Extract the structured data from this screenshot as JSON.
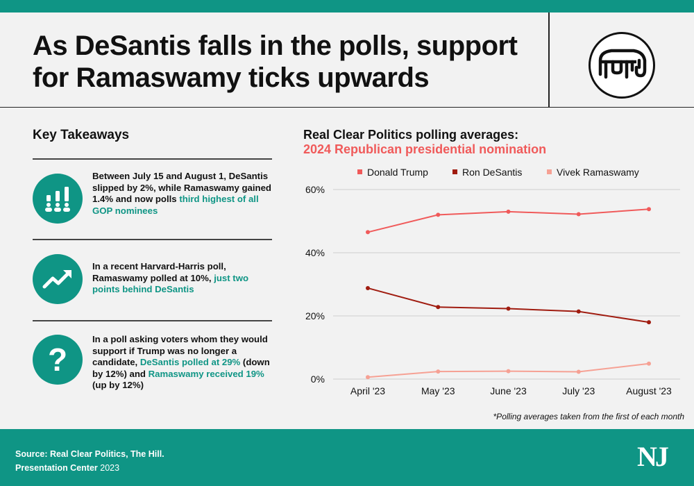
{
  "header": {
    "title": "As DeSantis falls in the polls, support for Ramaswamy ticks upwards",
    "logo_icon": "gop-elephant-icon"
  },
  "takeaways": {
    "title": "Key Takeaways",
    "items": [
      {
        "icon": "poll-people-icon",
        "text": "Between July 15 and August 1, DeSantis slipped by 2%, while Ramaswamy gained 1.4% and now polls ",
        "highlight": "third highest of all GOP nominees",
        "text_after": ""
      },
      {
        "icon": "trend-up-icon",
        "text": "In a recent Harvard-Harris poll, Ramaswamy polled at 10%, ",
        "highlight": "just two points behind DeSantis",
        "text_after": ""
      },
      {
        "icon": "question-mark-icon",
        "text": "In a poll asking voters whom they would support if Trump was no longer a candidate, ",
        "highlight": "DeSantis polled at 29%",
        "text_mid": " (down by 12%) and ",
        "highlight2": "Ramaswamy received 19%",
        "text_after": " (up by 12%)"
      }
    ]
  },
  "chart_data": {
    "type": "line",
    "title": "Real Clear Politics polling averages:",
    "subtitle": "2024 Republican presidential nomination",
    "categories": [
      "April '23",
      "May '23",
      "June '23",
      "July '23",
      "August '23"
    ],
    "series": [
      {
        "name": "Donald Trump",
        "color": "#f05a5a",
        "values": [
          46.5,
          52.0,
          53.0,
          52.2,
          53.8
        ]
      },
      {
        "name": "Ron DeSantis",
        "color": "#a01c10",
        "values": [
          28.8,
          22.8,
          22.3,
          21.4,
          18.0
        ]
      },
      {
        "name": "Vivek Ramaswamy",
        "color": "#f6a194",
        "values": [
          0.6,
          2.4,
          2.5,
          2.3,
          4.9
        ]
      }
    ],
    "yticks": [
      "0%",
      "20%",
      "40%",
      "60%"
    ],
    "ytick_values": [
      0,
      20,
      40,
      60
    ],
    "ylim": [
      0,
      60
    ],
    "grid": true,
    "legend": "top"
  },
  "note": "*Polling averages taken from the first of each month",
  "footer": {
    "source_label": "Source: Real Clear Politics, The Hill.",
    "center_label": "Presentation Center",
    "year": "2023",
    "brand": "NJ"
  }
}
